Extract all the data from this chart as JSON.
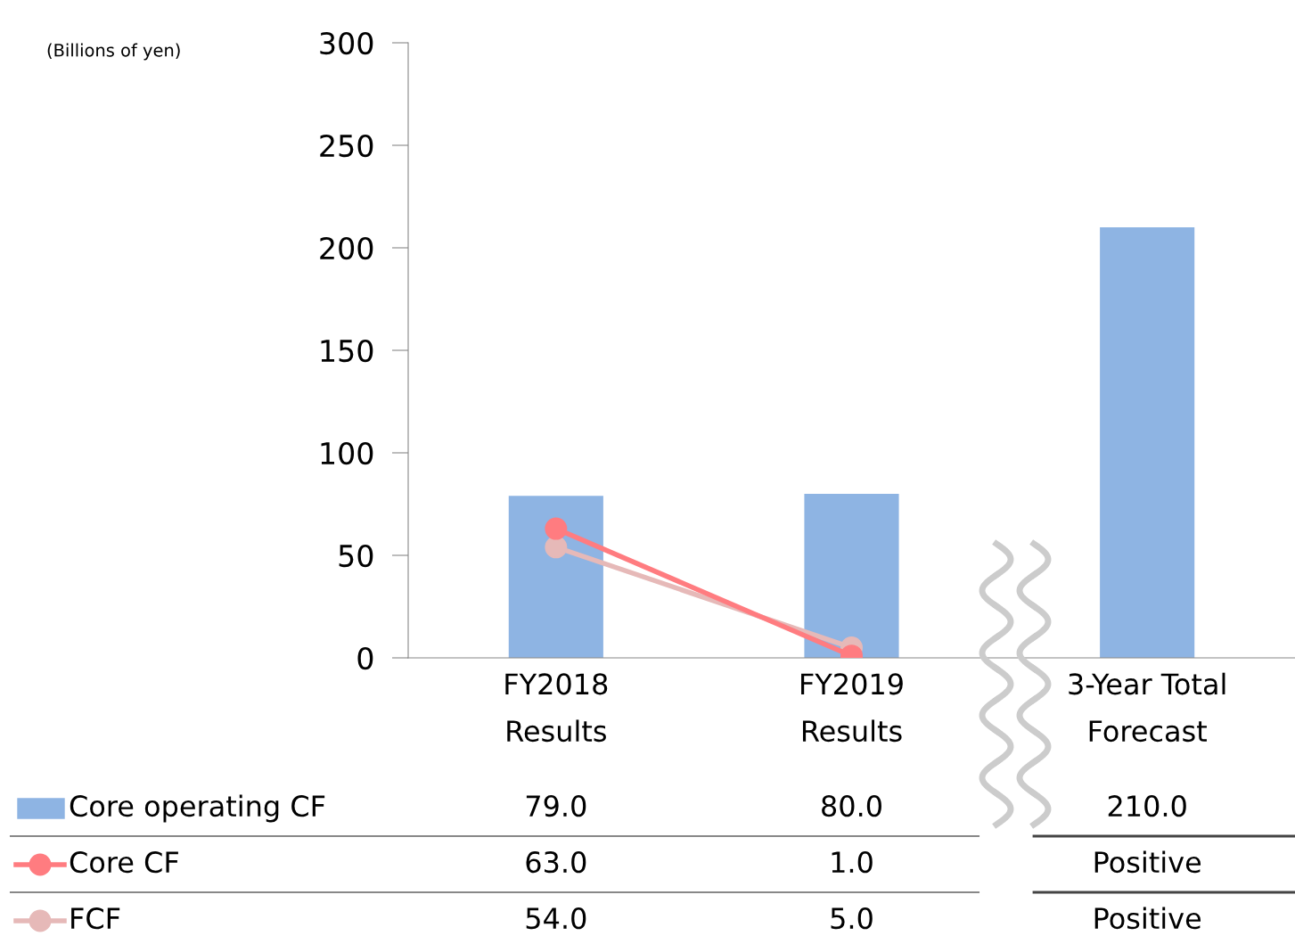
{
  "chart_data": {
    "type": "bar",
    "annotations": [
      "(Billions of yen)"
    ],
    "categories": [
      "FY2018\nResults",
      "FY2019\nResults",
      "3-Year Total\nForecast"
    ],
    "series": [
      {
        "name": "Core operating CF",
        "color": "#8eb4e3",
        "values": [
          79,
          80,
          210
        ],
        "value_labels": [
          "79.0",
          "80.0",
          "210.0"
        ]
      },
      {
        "name": "Core CF",
        "type": "line",
        "color": "#ff7c80",
        "values": [
          63,
          1,
          null
        ],
        "value_labels": [
          "63.0",
          "1.0",
          "Positive"
        ]
      },
      {
        "name": "FCF",
        "type": "line",
        "color": "#e6b9b8",
        "values": [
          54,
          5,
          null
        ],
        "value_labels": [
          "54.0",
          "5.0",
          "Positive"
        ]
      }
    ],
    "ylim": [
      0,
      300
    ],
    "yticks": [
      0,
      50,
      100,
      150,
      200,
      250,
      300
    ],
    "grid": false,
    "legend": "bottom",
    "marker": "circle",
    "line_style": "solid"
  }
}
